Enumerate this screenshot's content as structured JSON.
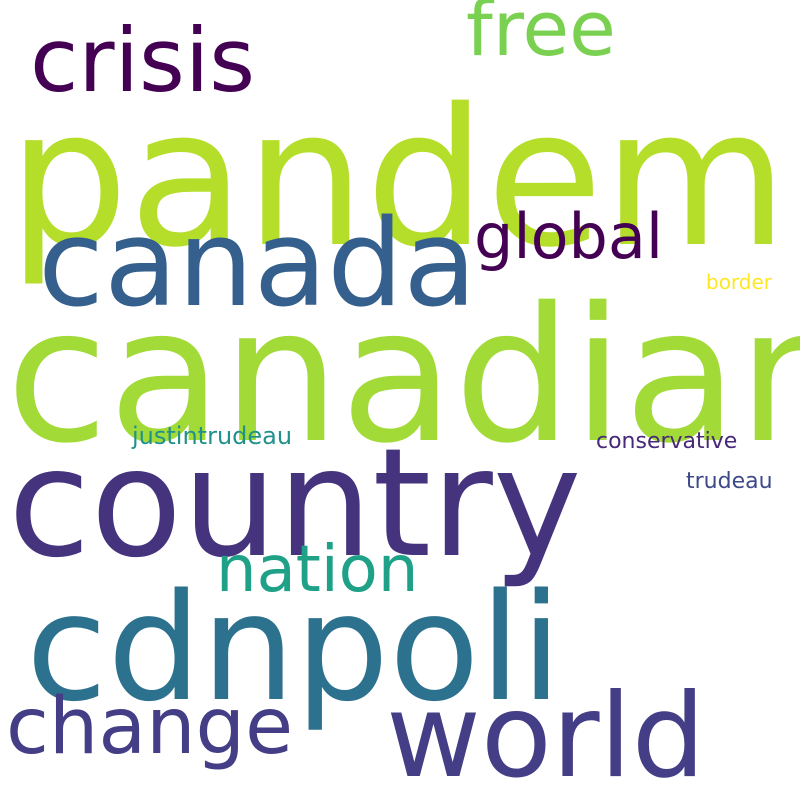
{
  "background_color": "#ffffff",
  "words": [
    {
      "text": "pandemic",
      "color": "#b5de2b"
    },
    {
      "text": "canadian",
      "color": "#a2da37"
    },
    {
      "text": "country",
      "color": "#46337e"
    },
    {
      "text": "cdnpoli",
      "color": "#2c728e"
    },
    {
      "text": "canada",
      "color": "#35608d"
    },
    {
      "text": "world",
      "color": "#433e85"
    },
    {
      "text": "crisis",
      "color": "#440154"
    },
    {
      "text": "change",
      "color": "#433e85"
    },
    {
      "text": "free",
      "color": "#7ad151"
    },
    {
      "text": "nation",
      "color": "#1fa188"
    },
    {
      "text": "global",
      "color": "#440154"
    },
    {
      "text": "justintrudeau",
      "color": "#21918c"
    },
    {
      "text": "conservative",
      "color": "#482878"
    },
    {
      "text": "trudeau",
      "color": "#3e4989"
    },
    {
      "text": "border",
      "color": "#fde725"
    }
  ]
}
